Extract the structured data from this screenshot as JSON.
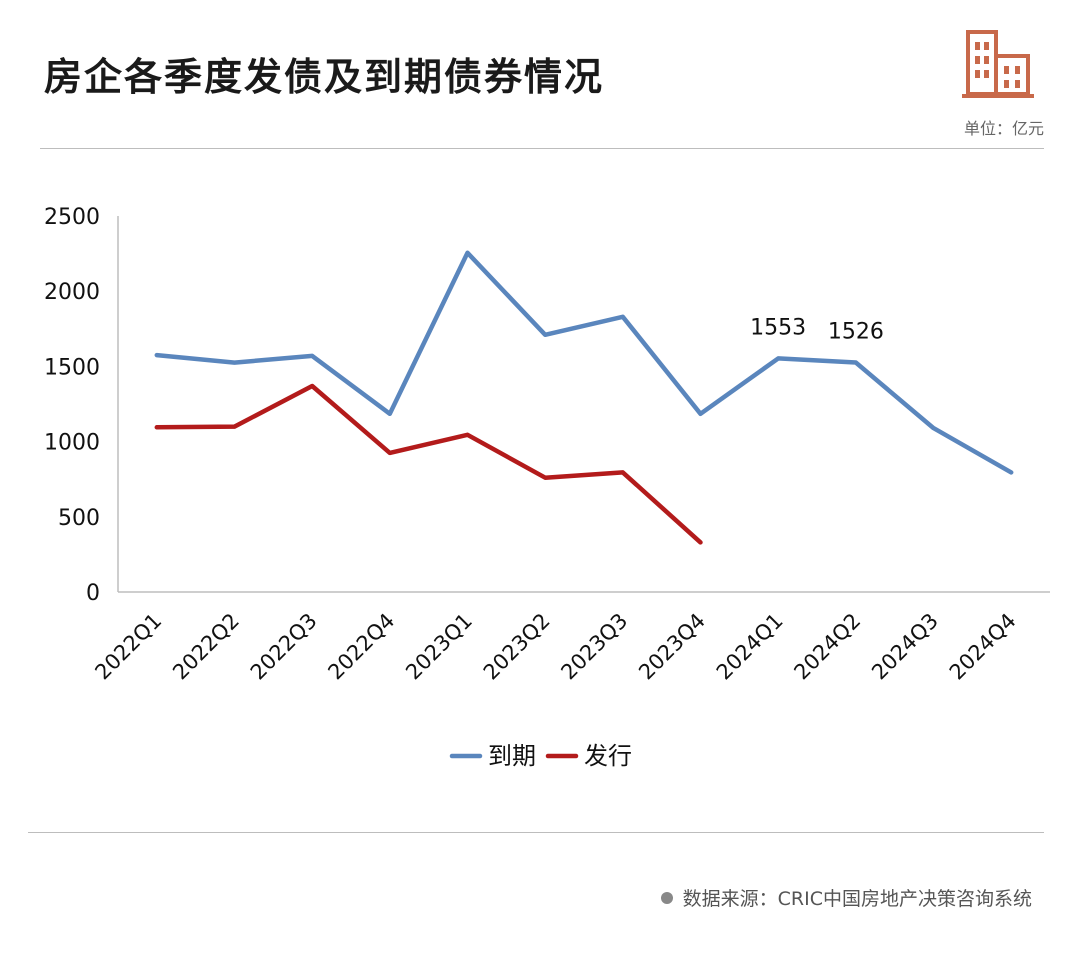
{
  "header": {
    "title": "房企各季度发债及到期债券情况",
    "unit": "单位：亿元",
    "logo_icon": "building-icon"
  },
  "footer": {
    "source": "数据来源：CRIC中国房地产决策咨询系统"
  },
  "colors": {
    "maturity": "#5a86bd",
    "issuance": "#b31b1b",
    "axis": "#bdbdbd",
    "logo": "#c8694a"
  },
  "chart_data": {
    "type": "line",
    "title": "房企各季度发债及到期债券情况",
    "unit": "单位：亿元",
    "categories": [
      "2022Q1",
      "2022Q2",
      "2022Q3",
      "2022Q4",
      "2023Q1",
      "2023Q2",
      "2023Q3",
      "2023Q4",
      "2024Q1",
      "2024Q2",
      "2024Q3",
      "2024Q4"
    ],
    "series": [
      {
        "name": "到期",
        "values": [
          1575,
          1525,
          1570,
          1185,
          2255,
          1710,
          1830,
          1185,
          1553,
          1526,
          1090,
          795
        ]
      },
      {
        "name": "发行",
        "values": [
          1095,
          1100,
          1370,
          925,
          1045,
          760,
          795,
          330,
          null,
          null,
          null,
          null
        ]
      }
    ],
    "data_labels": [
      {
        "series": "到期",
        "category": "2024Q1",
        "text": "1553"
      },
      {
        "series": "到期",
        "category": "2024Q2",
        "text": "1526"
      }
    ],
    "ylim": [
      0,
      2500
    ],
    "yticks": [
      "0",
      "500",
      "1000",
      "1500",
      "2000",
      "2500"
    ],
    "grid": false,
    "legend_position": "bottom"
  }
}
